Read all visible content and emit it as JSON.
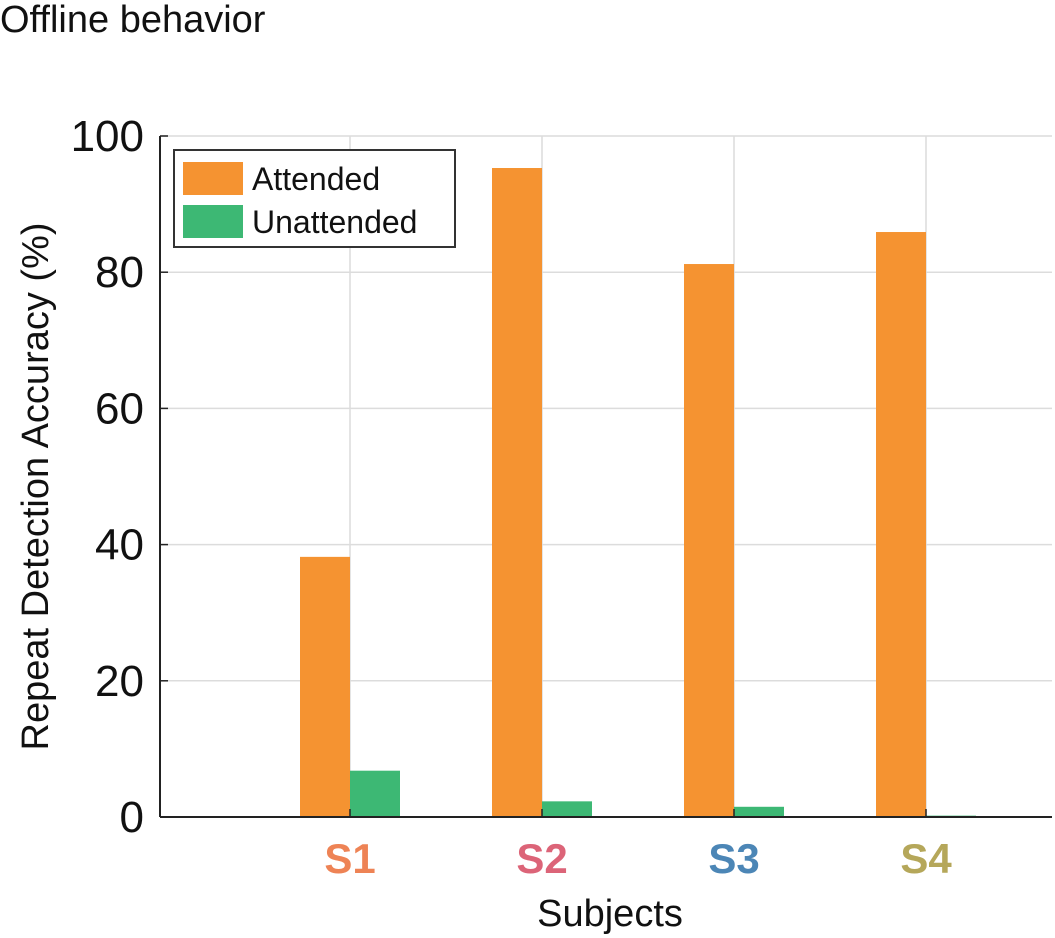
{
  "chart_data": {
    "type": "bar",
    "title": "Offline behavior",
    "xlabel": "Subjects",
    "ylabel": "Repeat Detection Accuracy (%)",
    "ylim": [
      0,
      100
    ],
    "yticks": [
      0,
      20,
      40,
      60,
      80,
      100
    ],
    "grid": true,
    "legend_position": "top-left",
    "categories": [
      "S1",
      "S2",
      "S3",
      "S4"
    ],
    "category_colors": [
      "#EE8355",
      "#DC6478",
      "#4C86B6",
      "#B5A75A"
    ],
    "series": [
      {
        "name": "Attended",
        "color": "#F59331",
        "values": [
          38.2,
          95.3,
          81.2,
          85.9
        ]
      },
      {
        "name": "Unattended",
        "color": "#3DB874",
        "values": [
          6.8,
          2.3,
          1.5,
          0.2
        ]
      }
    ]
  }
}
